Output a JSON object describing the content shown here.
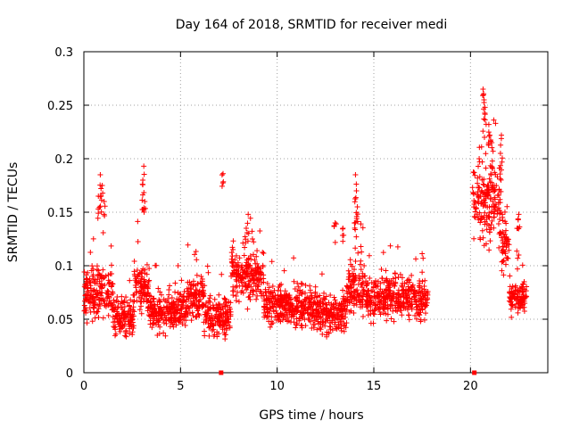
{
  "chart_data": {
    "type": "scatter",
    "title": "Day 164 of 2018, SRMTID for receiver medi",
    "xlabel": "GPS time / hours",
    "ylabel": "SRMTID / TECUs",
    "xlim": [
      0,
      24
    ],
    "ylim": [
      0,
      0.3
    ],
    "xticks": [
      0,
      5,
      10,
      15,
      20
    ],
    "xtick_labels": [
      "0",
      "5",
      "10",
      "15",
      "20"
    ],
    "yticks": [
      0,
      0.05,
      0.1,
      0.15,
      0.2,
      0.25,
      0.3
    ],
    "ytick_labels": [
      "0",
      "0.05",
      "0.1",
      "0.15",
      "0.2",
      "0.25",
      "0.3"
    ],
    "grid": true,
    "series_color": "#ff0000",
    "marker": "plus",
    "segments": [
      {
        "x_start": 0.0,
        "x_end": 1.5,
        "base": 0.075,
        "spread": 0.035
      },
      {
        "x_start": 1.5,
        "x_end": 2.6,
        "base": 0.052,
        "spread": 0.025
      },
      {
        "x_start": 2.6,
        "x_end": 3.4,
        "base": 0.08,
        "spread": 0.035
      },
      {
        "x_start": 3.4,
        "x_end": 5.3,
        "base": 0.058,
        "spread": 0.028
      },
      {
        "x_start": 5.3,
        "x_end": 6.2,
        "base": 0.07,
        "spread": 0.03
      },
      {
        "x_start": 6.2,
        "x_end": 7.6,
        "base": 0.052,
        "spread": 0.025
      },
      {
        "x_start": 7.6,
        "x_end": 9.3,
        "base": 0.09,
        "spread": 0.035
      },
      {
        "x_start": 9.3,
        "x_end": 11.8,
        "base": 0.062,
        "spread": 0.028
      },
      {
        "x_start": 11.8,
        "x_end": 13.6,
        "base": 0.055,
        "spread": 0.028
      },
      {
        "x_start": 13.6,
        "x_end": 14.6,
        "base": 0.08,
        "spread": 0.035
      },
      {
        "x_start": 14.6,
        "x_end": 17.8,
        "base": 0.07,
        "spread": 0.03
      },
      {
        "x_start": 20.1,
        "x_end": 21.6,
        "base": 0.155,
        "spread": 0.05
      },
      {
        "x_start": 21.6,
        "x_end": 22.0,
        "base": 0.12,
        "spread": 0.04
      },
      {
        "x_start": 22.0,
        "x_end": 22.9,
        "base": 0.07,
        "spread": 0.02
      }
    ],
    "peaks": [
      {
        "x": 0.85,
        "y": 0.185
      },
      {
        "x": 0.95,
        "y": 0.175
      },
      {
        "x": 0.75,
        "y": 0.165
      },
      {
        "x": 1.05,
        "y": 0.16
      },
      {
        "x": 3.1,
        "y": 0.193
      },
      {
        "x": 3.05,
        "y": 0.18
      },
      {
        "x": 3.15,
        "y": 0.16
      },
      {
        "x": 7.2,
        "y": 0.186
      },
      {
        "x": 8.5,
        "y": 0.148
      },
      {
        "x": 8.4,
        "y": 0.135
      },
      {
        "x": 14.05,
        "y": 0.185
      },
      {
        "x": 14.1,
        "y": 0.17
      },
      {
        "x": 14.15,
        "y": 0.155
      },
      {
        "x": 14.0,
        "y": 0.14
      },
      {
        "x": 13.0,
        "y": 0.14
      },
      {
        "x": 13.4,
        "y": 0.135
      },
      {
        "x": 20.45,
        "y": 0.2
      },
      {
        "x": 20.65,
        "y": 0.265
      },
      {
        "x": 20.7,
        "y": 0.255
      },
      {
        "x": 20.75,
        "y": 0.248
      },
      {
        "x": 20.95,
        "y": 0.232
      },
      {
        "x": 21.0,
        "y": 0.222
      },
      {
        "x": 21.1,
        "y": 0.215
      },
      {
        "x": 21.6,
        "y": 0.222
      },
      {
        "x": 21.55,
        "y": 0.205
      },
      {
        "x": 22.5,
        "y": 0.148
      },
      {
        "x": 22.45,
        "y": 0.135
      }
    ],
    "zero_markers": [
      {
        "x": 7.1,
        "y": 0
      },
      {
        "x": 20.2,
        "y": 0
      }
    ]
  }
}
